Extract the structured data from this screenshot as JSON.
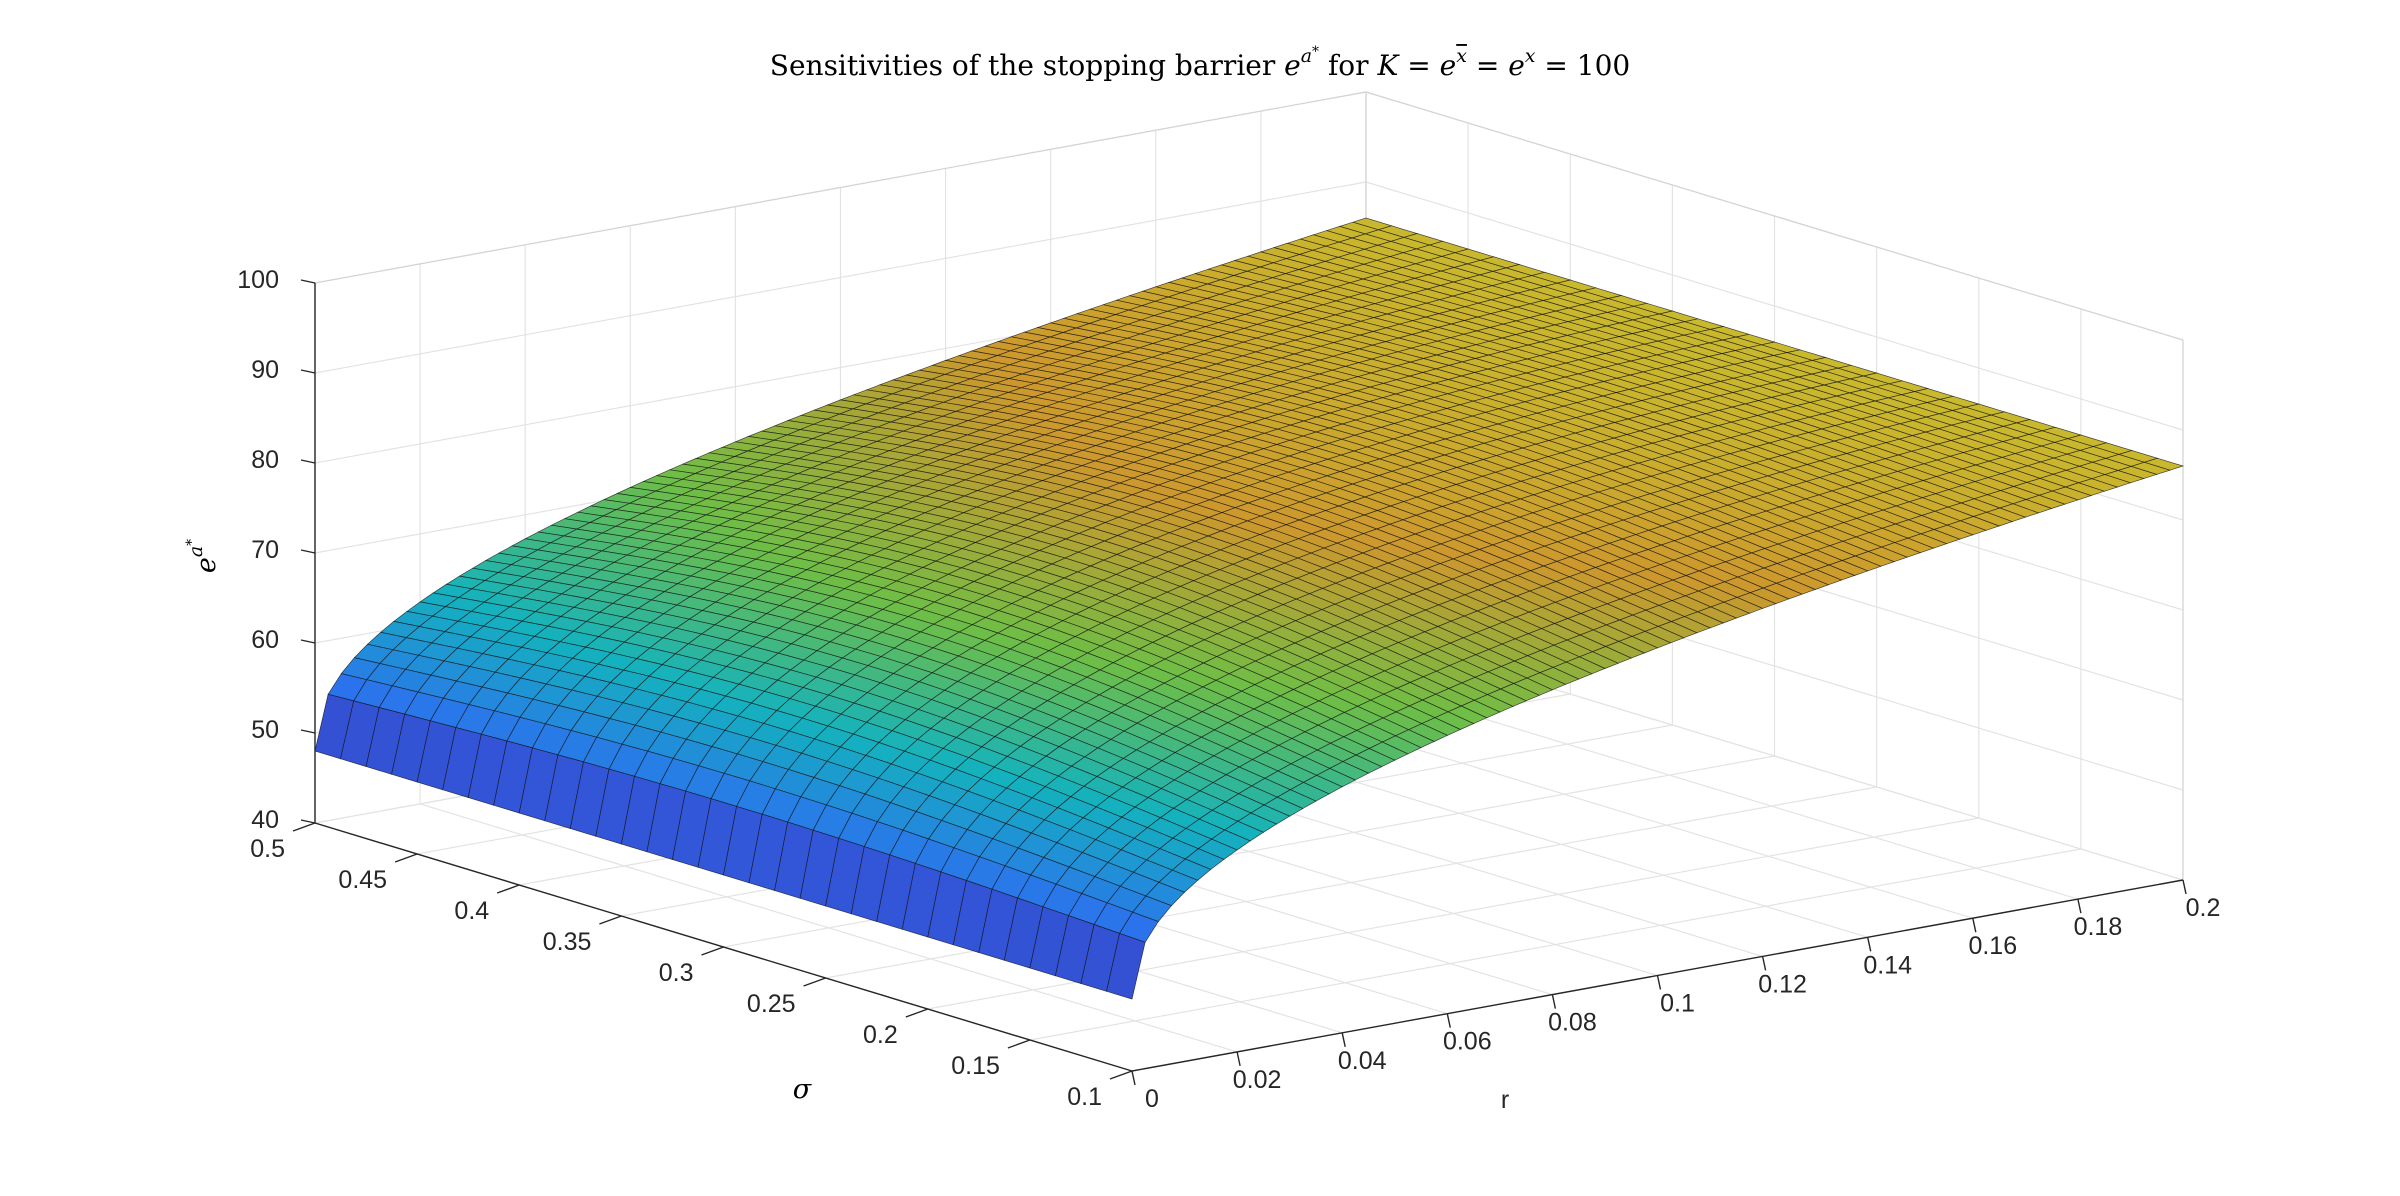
{
  "chart_data": {
    "type": "surface",
    "title": {
      "prefix": "Sensitivities of the stopping barrier ",
      "e": "e",
      "sup": "a",
      "star": "*",
      "mid": " for ",
      "K": "K",
      "eq1": " = ",
      "xbar": "x",
      "eq2": " = ",
      "x": "x",
      "eq3": " = 100"
    },
    "zlabel": {
      "e": "e",
      "sup": "a",
      "star": "*"
    },
    "xlabel": "r",
    "ylabel": "σ",
    "x_range": [
      0,
      0.2
    ],
    "y_range": [
      0.1,
      0.5
    ],
    "z_range": [
      40,
      100
    ],
    "x_ticks": [
      "0",
      "0.02",
      "0.04",
      "0.06",
      "0.08",
      "0.1",
      "0.12",
      "0.14",
      "0.16",
      "0.18",
      "0.2"
    ],
    "y_ticks": [
      "0.1",
      "0.15",
      "0.2",
      "0.25",
      "0.3",
      "0.35",
      "0.4",
      "0.45",
      "0.5"
    ],
    "z_ticks": [
      "40",
      "50",
      "60",
      "70",
      "80",
      "90",
      "100"
    ],
    "grid": true,
    "corner_values": [
      {
        "r": 0,
        "sigma": 0.1,
        "e_a_star": 48
      },
      {
        "r": 0,
        "sigma": 0.5,
        "e_a_star": 48
      },
      {
        "r": 0.2,
        "sigma": 0.1,
        "e_a_star": 86
      },
      {
        "r": 0.2,
        "sigma": 0.5,
        "e_a_star": 86
      }
    ],
    "colormap": "parula-like (blue → teal → green → orange → yellow)",
    "colors": {
      "low": "#3d26a8",
      "mid": "#20b2aa",
      "high": "#d49a2a",
      "top": "#c9c22c"
    }
  }
}
